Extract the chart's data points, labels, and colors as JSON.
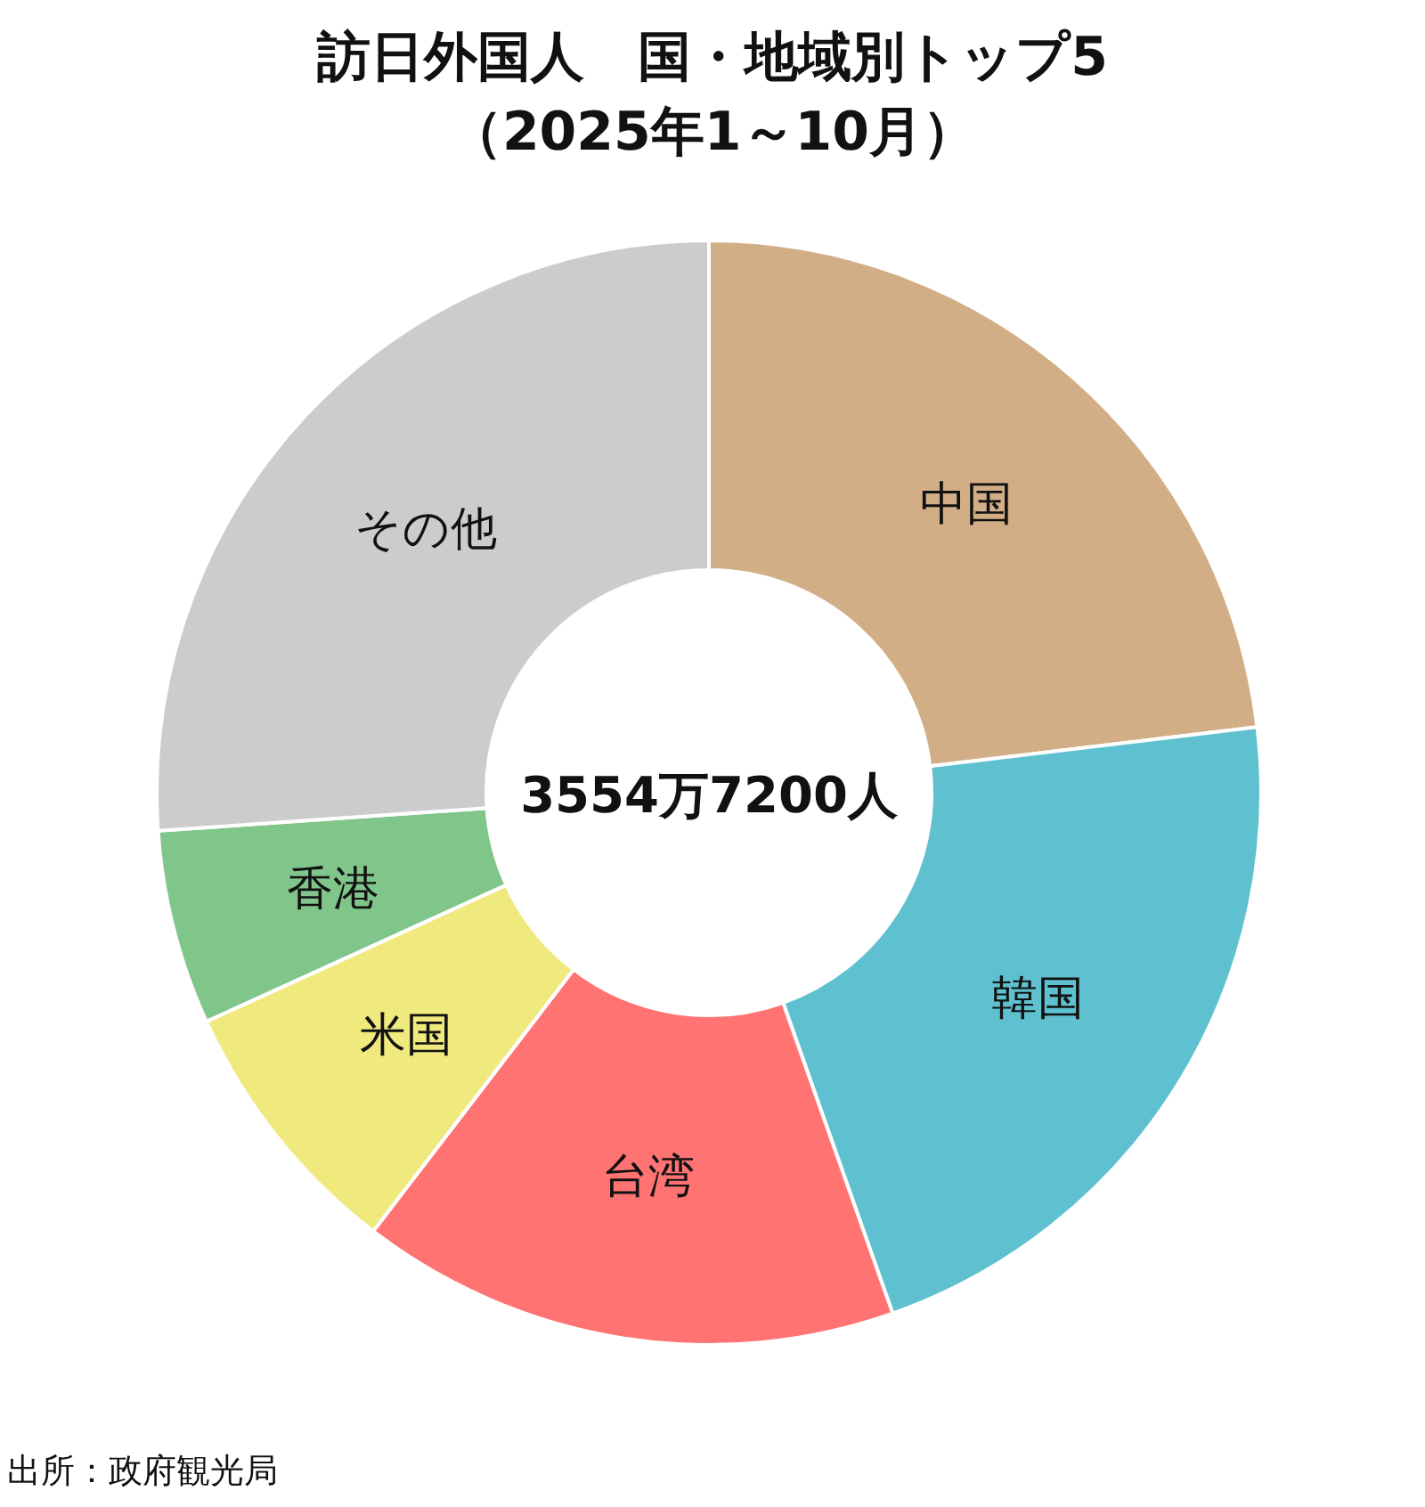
{
  "chart_data": {
    "type": "donut",
    "title": "訪日外国人　国・地域別トップ5",
    "subtitle": "（2025年1～10月）",
    "categories": [
      "中国",
      "韓国",
      "台湾",
      "米国",
      "香港",
      "その他"
    ],
    "values": [
      23.1,
      21.5,
      15.8,
      7.8,
      5.7,
      26.1
    ],
    "colors": [
      "#d2ae86",
      "#5fc1cf",
      "#ff7473",
      "#f0e97d",
      "#80c58a",
      "#cccccc"
    ],
    "annotations": [
      "3554万7200人",
      "出所：政府観光局"
    ]
  }
}
